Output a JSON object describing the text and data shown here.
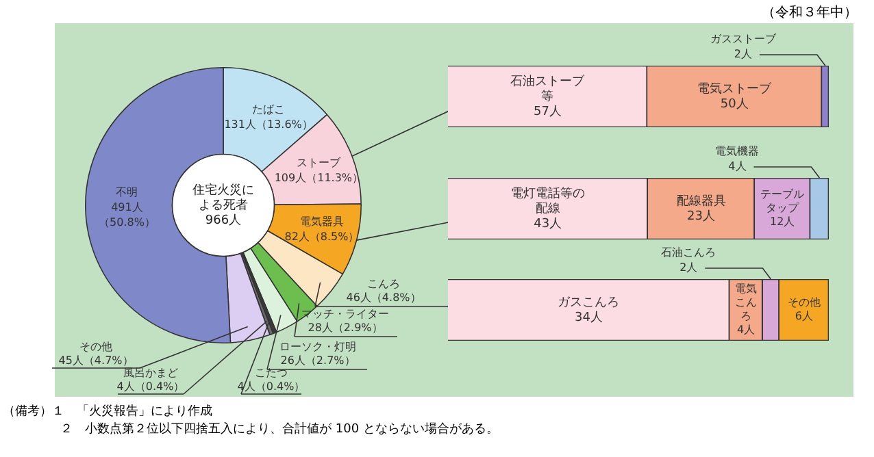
{
  "chart_data": [
    {
      "type": "donut",
      "title": "住宅火災による死者",
      "subtitle": "966人",
      "categories": [
        "たばこ",
        "ストーブ",
        "電気器具",
        "こんろ",
        "マッチ・ライター",
        "ローソク・灯明",
        "こたつ",
        "風呂かまど",
        "その他",
        "不明"
      ],
      "values": [
        131,
        109,
        82,
        46,
        28,
        26,
        4,
        4,
        45,
        491
      ],
      "value_labels": [
        "131人（13.6%）",
        "109人（11.3%）",
        "82人（8.5%）",
        "46人（4.8%）",
        "28人（2.9%）",
        "26人（2.7%）",
        "4人（0.4%）",
        "4人（0.4%）",
        "45人（4.7%）",
        "491人（50.8%）"
      ],
      "colors": [
        "#bfe3f2",
        "#f9d3dc",
        "#f5a623",
        "#fde6c4",
        "#6cbf4f",
        "#dcf2dc",
        "#3a3a3a",
        "#6a6a6a",
        "#dccdf2",
        "#7f88c8"
      ],
      "legend": false,
      "annotations": [
        "（令和３年中）",
        "（備考）１　「火災報告」により作成",
        "２　小数点第２位以下四捨五入により、合計値が 100 とならない場合がある。"
      ]
    },
    {
      "type": "bar",
      "orientation": "horizontal",
      "stacked": true,
      "categories": [
        null
      ],
      "xlim": [
        0,
        109
      ],
      "tick_labels": false,
      "legend": false,
      "series": [
        {
          "name": "石油ストーブ等",
          "color": "#fbdde3",
          "values": [
            57
          ],
          "value_labels": [
            "57人"
          ]
        },
        {
          "name": "電気ストーブ",
          "color": "#f4a98a",
          "values": [
            50
          ],
          "value_labels": [
            "50人"
          ]
        },
        {
          "name": "ガスストーブ",
          "color": "#9080d0",
          "values": [
            2
          ],
          "value_labels": [
            "2人"
          ]
        }
      ]
    },
    {
      "type": "bar",
      "orientation": "horizontal",
      "stacked": true,
      "categories": [
        null
      ],
      "xlim": [
        0,
        82
      ],
      "tick_labels": false,
      "legend": false,
      "series": [
        {
          "name": "電灯電話等の配線",
          "color": "#fbdde3",
          "values": [
            43
          ],
          "value_labels": [
            "43人"
          ]
        },
        {
          "name": "配線器具",
          "color": "#f4a98a",
          "values": [
            23
          ],
          "value_labels": [
            "23人"
          ]
        },
        {
          "name": "テーブルタップ",
          "color": "#d8a8d8",
          "values": [
            12
          ],
          "value_labels": [
            "12人"
          ]
        },
        {
          "name": "電気機器",
          "color": "#a8c8e8",
          "values": [
            4
          ],
          "value_labels": [
            "4人"
          ]
        }
      ]
    },
    {
      "type": "bar",
      "orientation": "horizontal",
      "stacked": true,
      "categories": [
        null
      ],
      "xlim": [
        0,
        46
      ],
      "tick_labels": false,
      "legend": false,
      "series": [
        {
          "name": "ガスこんろ",
          "color": "#fbdde3",
          "values": [
            34
          ],
          "value_labels": [
            "34人"
          ]
        },
        {
          "name": "電気こんろ",
          "color": "#f4a98a",
          "values": [
            4
          ],
          "value_labels": [
            "4人"
          ]
        },
        {
          "name": "石油こんろ",
          "color": "#d8a8d8",
          "values": [
            2
          ],
          "value_labels": [
            "2人"
          ]
        },
        {
          "name": "その他",
          "color": "#f5a623",
          "values": [
            6
          ],
          "value_labels": [
            "6人"
          ]
        }
      ]
    }
  ]
}
